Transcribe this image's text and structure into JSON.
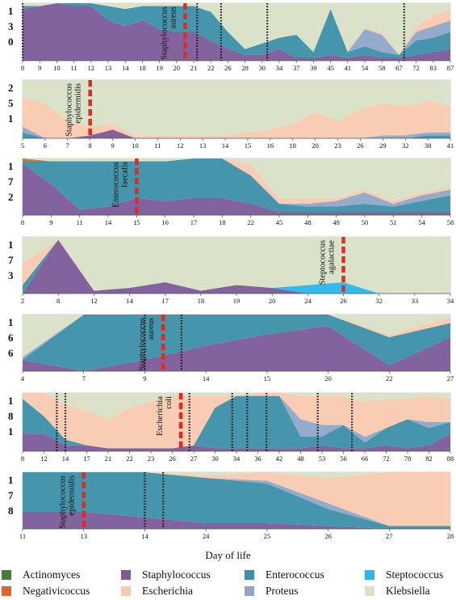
{
  "colors": {
    "Actinomyces": "#4a7a3a",
    "Negativicoccus": "#d9682e",
    "Staphylococcus": "#7b5b98",
    "Escherichia": "#f9c9b0",
    "Enterococcus": "#3b8fa8",
    "Proteus": "#8ea6c8",
    "Steptococcus": "#29b6ea",
    "Klebsiella": "#d8e2c6"
  },
  "legend": [
    "Actinomyces",
    "Staphylococcus",
    "Enterococcus",
    "Steptococcus",
    "Negativicoccus",
    "Escherichia",
    "Proteus",
    "Klebsiella"
  ],
  "x_title": "Day of life",
  "chart_data": [
    {
      "type": "area",
      "stacked": true,
      "ylim": [
        0,
        1
      ],
      "ylabels": [
        "1",
        "3",
        "0"
      ],
      "categories": [
        "8",
        "9",
        "10",
        "11",
        "12",
        "13",
        "14",
        "18",
        "19",
        "20",
        "21",
        "22",
        "26",
        "28",
        "30",
        "34",
        "37",
        "39",
        "45",
        "41",
        "54",
        "58",
        "67",
        "72",
        "83",
        "87"
      ],
      "annotation": "Staphylococcus aureus",
      "marker_index": 9.5,
      "dotted_indices": [
        0,
        10.2,
        11.6,
        14.3,
        22.3
      ],
      "series": [
        {
          "name": "Staphylococcus",
          "values": [
            0.9,
            0.95,
            1.0,
            0.95,
            0.95,
            0.7,
            0.6,
            0.7,
            0.55,
            0.5,
            0.5,
            0.35,
            0.2,
            0.1,
            0.1,
            0.2,
            0.05,
            0.05,
            0.1,
            0.05,
            0.1,
            0.05,
            0.05,
            0.1,
            0.15,
            0.2
          ]
        },
        {
          "name": "Enterococcus",
          "values": [
            0.05,
            0.0,
            0.0,
            0.05,
            0.05,
            0.25,
            0.3,
            0.25,
            0.4,
            0.45,
            0.45,
            0.5,
            0.3,
            0.1,
            0.2,
            0.2,
            0.4,
            0.1,
            0.8,
            0.1,
            0.15,
            0.1,
            0.05,
            0.25,
            0.25,
            0.3
          ]
        },
        {
          "name": "Proteus",
          "values": [
            0.0,
            0.0,
            0.0,
            0.0,
            0.0,
            0.0,
            0.0,
            0.0,
            0.0,
            0.0,
            0.0,
            0.0,
            0.0,
            0.0,
            0.0,
            0.0,
            0.0,
            0.0,
            0.0,
            0.0,
            0.3,
            0.3,
            0.0,
            0.15,
            0.2,
            0.2
          ]
        },
        {
          "name": "Escherichia",
          "values": [
            0.0,
            0.0,
            0.0,
            0.0,
            0.0,
            0.0,
            0.0,
            0.0,
            0.0,
            0.0,
            0.0,
            0.0,
            0.0,
            0.0,
            0.0,
            0.0,
            0.0,
            0.0,
            0.0,
            0.05,
            0.0,
            0.05,
            0.0,
            0.1,
            0.2,
            0.2
          ]
        },
        {
          "name": "Klebsiella",
          "values": [
            0.05,
            0.05,
            0.0,
            0.0,
            0.0,
            0.05,
            0.1,
            0.05,
            0.05,
            0.05,
            0.05,
            0.15,
            0.5,
            0.8,
            0.7,
            0.6,
            0.55,
            0.85,
            0.1,
            0.8,
            0.45,
            0.5,
            0.9,
            0.4,
            0.2,
            0.1
          ]
        }
      ]
    },
    {
      "type": "area",
      "stacked": true,
      "ylim": [
        0,
        1
      ],
      "ylabels": [
        "2",
        "5",
        "1"
      ],
      "categories": [
        "5",
        "6",
        "7",
        "8",
        "9",
        "10",
        "11",
        "12",
        "13",
        "14",
        "15",
        "16",
        "18",
        "20",
        "23",
        "26",
        "29",
        "32",
        "38",
        "41"
      ],
      "annotation": "Staphylococcus epidermidis",
      "marker_index": 3,
      "dotted_indices": [],
      "series": [
        {
          "name": "Staphylococcus",
          "values": [
            0.0,
            0.0,
            0.0,
            0.05,
            0.15,
            0.0,
            0.0,
            0.0,
            0.0,
            0.0,
            0.0,
            0.0,
            0.0,
            0.0,
            0.0,
            0.0,
            0.0,
            0.0,
            0.0,
            0.0
          ]
        },
        {
          "name": "Enterococcus",
          "values": [
            0.1,
            0.0,
            0.0,
            0.0,
            0.0,
            0.0,
            0.0,
            0.0,
            0.0,
            0.0,
            0.0,
            0.0,
            0.0,
            0.0,
            0.0,
            0.0,
            0.0,
            0.0,
            0.05,
            0.05
          ]
        },
        {
          "name": "Proteus",
          "values": [
            0.1,
            0.0,
            0.0,
            0.0,
            0.0,
            0.0,
            0.0,
            0.0,
            0.0,
            0.0,
            0.0,
            0.0,
            0.0,
            0.0,
            0.0,
            0.0,
            0.05,
            0.05,
            0.05,
            0.05
          ]
        },
        {
          "name": "Escherichia",
          "values": [
            0.5,
            0.6,
            0.3,
            0.15,
            0.1,
            0.05,
            0.05,
            0.05,
            0.05,
            0.05,
            0.1,
            0.15,
            0.25,
            0.45,
            0.3,
            0.5,
            0.55,
            0.5,
            0.55,
            0.45
          ]
        },
        {
          "name": "Klebsiella",
          "values": [
            0.3,
            0.4,
            0.7,
            0.8,
            0.75,
            0.95,
            0.95,
            0.95,
            0.95,
            0.95,
            0.9,
            0.85,
            0.75,
            0.55,
            0.7,
            0.5,
            0.4,
            0.45,
            0.35,
            0.45
          ]
        }
      ]
    },
    {
      "type": "area",
      "stacked": true,
      "ylim": [
        0,
        1
      ],
      "ylabels": [
        "1",
        "7",
        "2"
      ],
      "categories": [
        "8",
        "9",
        "11",
        "14",
        "15",
        "16",
        "17",
        "18",
        "22",
        "45",
        "48",
        "49",
        "50",
        "51",
        "54",
        "58"
      ],
      "annotation": "Enterococcus faecalis",
      "marker_index": 4,
      "dotted_indices": [],
      "series": [
        {
          "name": "Staphylococcus",
          "values": [
            0.9,
            0.55,
            0.1,
            0.15,
            0.3,
            0.25,
            0.3,
            0.3,
            0.2,
            0.05,
            0.05,
            0.05,
            0.05,
            0.05,
            0.05,
            0.05
          ]
        },
        {
          "name": "Enterococcus",
          "values": [
            0.05,
            0.4,
            0.85,
            0.8,
            0.65,
            0.7,
            0.7,
            0.7,
            0.5,
            0.15,
            0.1,
            0.1,
            0.15,
            0.1,
            0.2,
            0.3
          ]
        },
        {
          "name": "Proteus",
          "values": [
            0.0,
            0.0,
            0.0,
            0.0,
            0.0,
            0.0,
            0.0,
            0.0,
            0.0,
            0.0,
            0.05,
            0.1,
            0.2,
            0.05,
            0.1,
            0.1
          ]
        },
        {
          "name": "Negativicoccus",
          "values": [
            0.05,
            0.0,
            0.0,
            0.0,
            0.0,
            0.0,
            0.0,
            0.0,
            0.0,
            0.0,
            0.0,
            0.0,
            0.0,
            0.0,
            0.0,
            0.0
          ]
        },
        {
          "name": "Escherichia",
          "values": [
            0.0,
            0.0,
            0.0,
            0.0,
            0.0,
            0.0,
            0.0,
            0.0,
            0.2,
            0.1,
            0.1,
            0.05,
            0.05,
            0.05,
            0.05,
            0.05
          ]
        },
        {
          "name": "Klebsiella",
          "values": [
            0.0,
            0.05,
            0.05,
            0.05,
            0.05,
            0.05,
            0.0,
            0.0,
            0.1,
            0.7,
            0.7,
            0.7,
            0.55,
            0.75,
            0.6,
            0.5
          ]
        }
      ]
    },
    {
      "type": "area",
      "stacked": true,
      "ylim": [
        0,
        1
      ],
      "ylabels": [
        "1",
        "7",
        "3"
      ],
      "categories": [
        "2",
        "8",
        "12",
        "14",
        "17",
        "18",
        "19",
        "20",
        "24",
        "26",
        "32",
        "33",
        "34"
      ],
      "annotation": "Steptococcus agalactiae",
      "marker_index": 9,
      "dotted_indices": [],
      "series": [
        {
          "name": "Staphylococcus",
          "values": [
            0.0,
            0.95,
            0.05,
            0.1,
            0.2,
            0.05,
            0.15,
            0.1,
            0.0,
            0.0,
            0.0,
            0.0,
            0.0
          ]
        },
        {
          "name": "Steptococcus",
          "values": [
            0.0,
            0.0,
            0.0,
            0.0,
            0.0,
            0.0,
            0.0,
            0.0,
            0.15,
            0.2,
            0.0,
            0.0,
            0.0
          ]
        },
        {
          "name": "Enterococcus",
          "values": [
            0.15,
            0.0,
            0.0,
            0.0,
            0.0,
            0.0,
            0.0,
            0.0,
            0.0,
            0.0,
            0.0,
            0.0,
            0.0
          ]
        },
        {
          "name": "Escherichia",
          "values": [
            0.4,
            0.0,
            0.0,
            0.0,
            0.0,
            0.0,
            0.0,
            0.0,
            0.0,
            0.0,
            0.0,
            0.0,
            0.0
          ]
        },
        {
          "name": "Klebsiella",
          "values": [
            0.45,
            0.05,
            0.95,
            0.9,
            0.8,
            0.95,
            0.85,
            0.9,
            0.85,
            0.8,
            1.0,
            1.0,
            1.0
          ]
        }
      ]
    },
    {
      "type": "area",
      "stacked": true,
      "ylim": [
        0,
        1
      ],
      "ylabels": [
        "1",
        "6",
        "6"
      ],
      "categories": [
        "4",
        "7",
        "9",
        "14",
        "15",
        "20",
        "22",
        "27"
      ],
      "annotation": "Staphylococcus aureus",
      "marker_index": 2.3,
      "dotted_indices": [
        2,
        2.6
      ],
      "series": [
        {
          "name": "Staphylococcus",
          "values": [
            0.2,
            0.0,
            0.2,
            0.45,
            0.65,
            0.8,
            0.1,
            0.6
          ]
        },
        {
          "name": "Enterococcus",
          "values": [
            0.0,
            1.0,
            0.8,
            0.55,
            0.35,
            0.2,
            0.5,
            0.25
          ]
        },
        {
          "name": "Proteus",
          "values": [
            0.05,
            0.0,
            0.0,
            0.0,
            0.0,
            0.0,
            0.0,
            0.0
          ]
        },
        {
          "name": "Escherichia",
          "values": [
            0.0,
            0.0,
            0.0,
            0.0,
            0.0,
            0.0,
            0.05,
            0.1
          ]
        },
        {
          "name": "Klebsiella",
          "values": [
            0.75,
            0.0,
            0.0,
            0.0,
            0.0,
            0.0,
            0.35,
            0.05
          ]
        }
      ]
    },
    {
      "type": "area",
      "stacked": true,
      "ylim": [
        0,
        1
      ],
      "ylabels": [
        "1",
        "8",
        "1"
      ],
      "categories": [
        "8",
        "12",
        "14",
        "17",
        "21",
        "22",
        "23",
        "26",
        "27",
        "30",
        "34",
        "36",
        "42",
        "48",
        "53",
        "56",
        "66",
        "72",
        "78",
        "82",
        "88"
      ],
      "annotation": "Escherichia coli",
      "marker_index": 7.4,
      "dotted_indices": [
        1.6,
        2.0,
        7.8,
        9.8,
        10.5,
        11.4,
        13.8,
        15.4
      ],
      "series": [
        {
          "name": "Staphylococcus",
          "values": [
            0.3,
            0.3,
            0.1,
            0.1,
            0.05,
            0.05,
            0.05,
            0.05,
            0.1,
            0.05,
            0.05,
            0.05,
            0.05,
            0.05,
            0.1,
            0.05,
            0.05,
            0.1,
            0.05,
            0.1,
            0.3
          ]
        },
        {
          "name": "Enterococcus",
          "values": [
            0.6,
            0.3,
            0.1,
            0.0,
            0.0,
            0.0,
            0.0,
            0.0,
            0.0,
            0.7,
            0.9,
            0.9,
            0.9,
            0.2,
            0.15,
            0.4,
            0.1,
            0.3,
            0.5,
            0.3,
            0.2
          ]
        },
        {
          "name": "Proteus",
          "values": [
            0.0,
            0.0,
            0.0,
            0.0,
            0.0,
            0.0,
            0.0,
            0.0,
            0.0,
            0.0,
            0.0,
            0.0,
            0.0,
            0.3,
            0.2,
            0.0,
            0.1,
            0.0,
            0.0,
            0.1,
            0.0
          ]
        },
        {
          "name": "Escherichia",
          "values": [
            0.1,
            0.4,
            0.6,
            0.6,
            0.5,
            0.7,
            0.8,
            0.9,
            0.85,
            0.2,
            0.0,
            0.05,
            0.05,
            0.4,
            0.5,
            0.5,
            0.6,
            0.5,
            0.35,
            0.45,
            0.4
          ]
        },
        {
          "name": "Klebsiella",
          "values": [
            0.0,
            0.0,
            0.2,
            0.3,
            0.45,
            0.25,
            0.15,
            0.05,
            0.05,
            0.05,
            0.05,
            0.0,
            0.0,
            0.05,
            0.05,
            0.05,
            0.15,
            0.1,
            0.1,
            0.05,
            0.1
          ]
        }
      ]
    },
    {
      "type": "area",
      "stacked": true,
      "ylim": [
        0,
        1
      ],
      "ylabels": [
        "1",
        "7",
        "8"
      ],
      "categories": [
        "11",
        "13",
        "14",
        "24",
        "25",
        "26",
        "27",
        "28"
      ],
      "annotation": "Staphylococcus epidermidis",
      "marker_index": 1,
      "dotted_indices": [
        2.0,
        2.3
      ],
      "series": [
        {
          "name": "Staphylococcus",
          "values": [
            0.3,
            0.3,
            0.2,
            0.1,
            0.1,
            0.05,
            0.0,
            0.0
          ]
        },
        {
          "name": "Enterococcus",
          "values": [
            0.7,
            0.7,
            0.8,
            0.8,
            0.7,
            0.3,
            0.05,
            0.05
          ]
        },
        {
          "name": "Proteus",
          "values": [
            0.0,
            0.0,
            0.0,
            0.0,
            0.05,
            0.1,
            0.0,
            0.0
          ]
        },
        {
          "name": "Escherichia",
          "values": [
            0.0,
            0.0,
            0.0,
            0.05,
            0.15,
            0.45,
            0.95,
            0.95
          ]
        },
        {
          "name": "Klebsiella",
          "values": [
            0.0,
            0.0,
            0.0,
            0.05,
            0.0,
            0.1,
            0.0,
            0.0
          ]
        }
      ]
    }
  ]
}
